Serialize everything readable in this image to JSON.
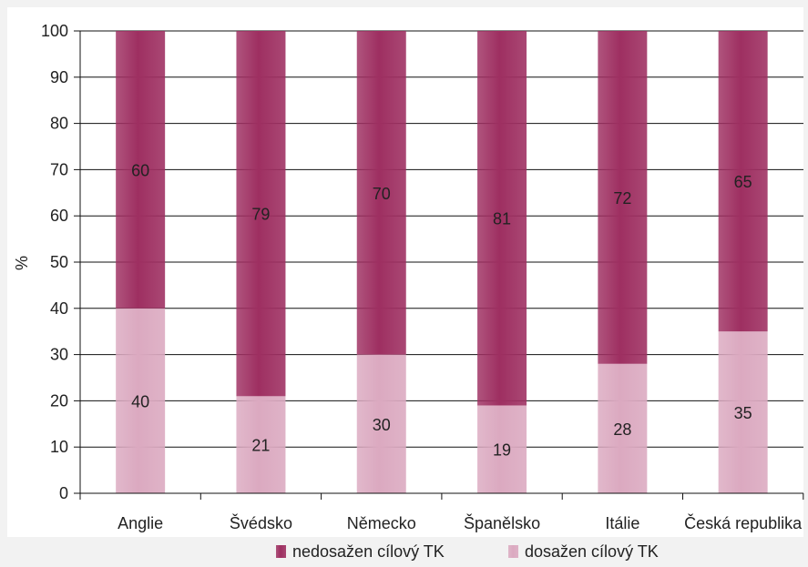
{
  "chart_data": {
    "type": "bar",
    "stacked": true,
    "categories": [
      "Anglie",
      "Švédsko",
      "Německo",
      "Španělsko",
      "Itálie",
      "Česká republika"
    ],
    "series": [
      {
        "name": "dosažen cílový TK",
        "values": [
          40,
          21,
          30,
          19,
          28,
          35
        ],
        "color": "#dba9c0"
      },
      {
        "name": "nedosažen cílový TK",
        "values": [
          60,
          79,
          70,
          81,
          72,
          65
        ],
        "color": "#9e2f61"
      }
    ],
    "ylabel": "%",
    "xlabel": "",
    "ylim": [
      0,
      100
    ],
    "yticks": [
      0,
      10,
      20,
      30,
      40,
      50,
      60,
      70,
      80,
      90,
      100
    ],
    "grid": true,
    "legend": {
      "position": "bottom",
      "order": [
        "nedosažen cílový TK",
        "dosažen cílový TK"
      ]
    }
  }
}
